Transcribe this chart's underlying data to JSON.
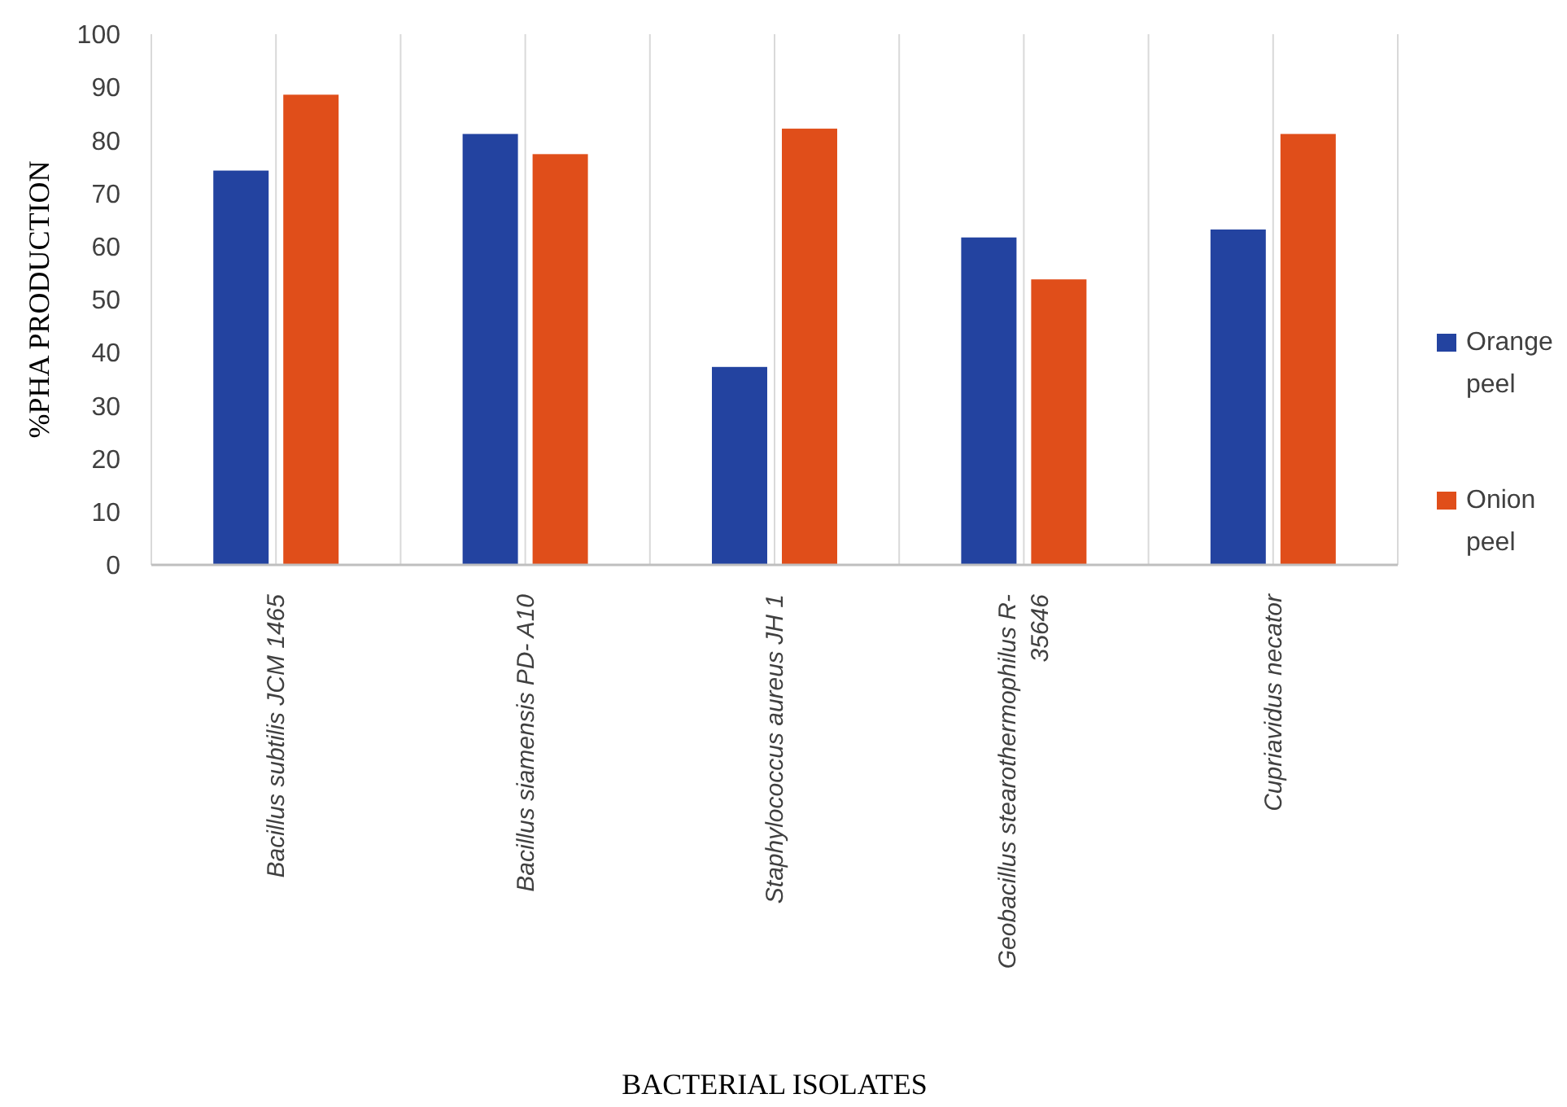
{
  "chart_data": {
    "type": "bar",
    "xlabel": "BACTERIAL ISOLATES",
    "ylabel": "%PHA PRODUCTION",
    "categories": [
      "Bacillus subtilis JCM 1465",
      "Bacillus siamensis PD- A10",
      "Staphylococcus aureus JH 1",
      "Geobacillus stearothermophilus R-35646",
      "Cupriavidus necator"
    ],
    "series": [
      {
        "name": "Orange peel",
        "color": "#2343a0",
        "values": [
          74.3,
          81.2,
          37.3,
          61.7,
          63.2
        ]
      },
      {
        "name": "Onion peel",
        "color": "#e04e1a",
        "values": [
          88.6,
          77.4,
          82.2,
          53.8,
          81.2
        ]
      }
    ],
    "ylim": [
      0,
      100
    ],
    "yticks": [
      0,
      10,
      20,
      30,
      40,
      50,
      60,
      70,
      80,
      90,
      100
    ],
    "grid": "x",
    "legend": "right"
  }
}
